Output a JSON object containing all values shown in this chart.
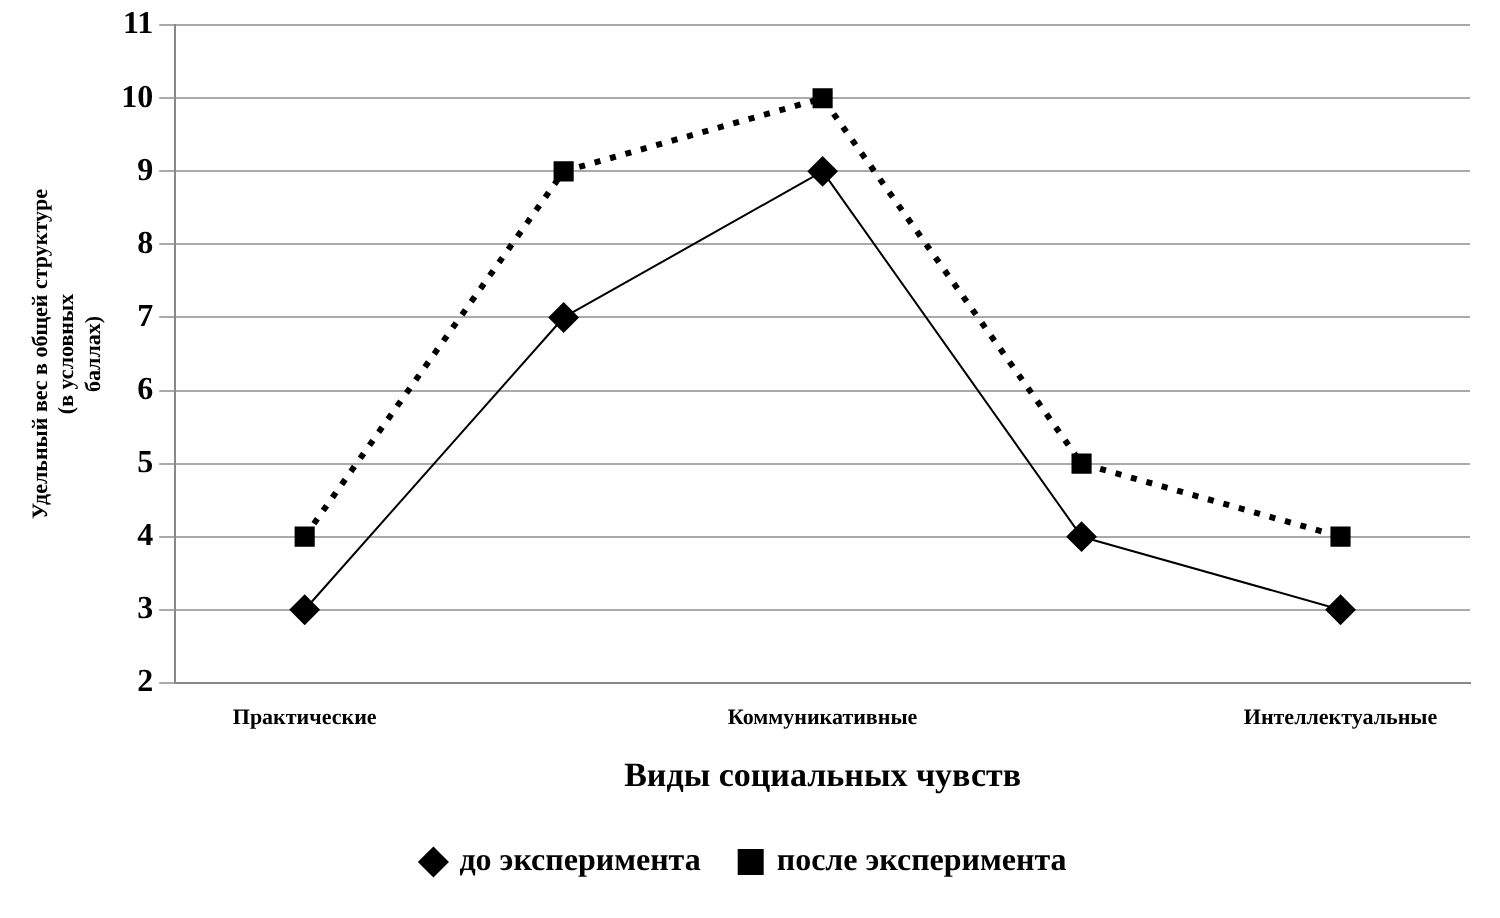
{
  "chart_data": {
    "type": "line",
    "xlabel": "Виды социальных чувств",
    "ylabel": "Удельный вес в общей структуре\n(в условных\nбаллах)",
    "categories": [
      "Практические",
      null,
      "Коммуникативные",
      null,
      "Интеллектуальные"
    ],
    "series": [
      {
        "name": "до эксперимента",
        "color": "#000000",
        "values": [
          3,
          7,
          9,
          4,
          3
        ],
        "marker": "diamond",
        "line_style": "solid"
      },
      {
        "name": "после эксперимента",
        "color": "#000000",
        "values": [
          4,
          9,
          10,
          5,
          4
        ],
        "marker": "square",
        "line_style": "dotted"
      }
    ],
    "ylim": [
      2,
      11
    ],
    "yticks": [
      2,
      3,
      4,
      5,
      6,
      7,
      8,
      9,
      10,
      11
    ],
    "grid": "y",
    "legend": "bottom"
  }
}
